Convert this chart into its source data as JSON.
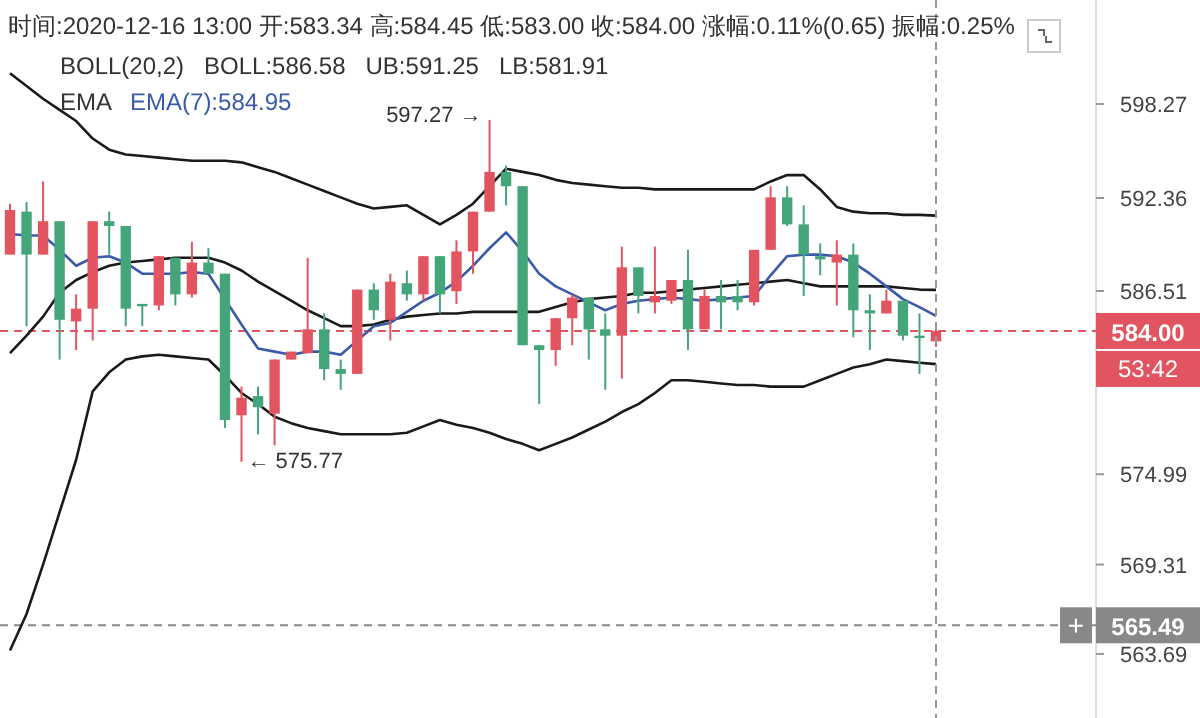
{
  "chart_data": {
    "type": "candlestick",
    "title": "时间:2020-12-16 13:00 开:583.34 高:584.45 低:583.00 收:584.00 涨幅:0.11%(0.65) 振幅:0.25%",
    "categories": [
      null,
      null,
      null,
      null,
      null,
      null,
      null,
      null,
      null,
      null,
      null,
      null,
      null,
      null,
      null,
      null,
      null,
      null,
      null,
      null,
      null,
      null,
      null,
      null,
      null,
      null,
      null,
      null,
      null,
      null,
      null,
      null,
      null,
      null,
      null,
      null,
      null,
      null,
      null,
      null,
      null,
      null,
      null,
      null,
      null,
      null,
      null,
      null,
      null,
      null,
      null,
      null,
      null,
      null,
      null,
      null,
      null
    ],
    "ohlc": [
      [
        588.8,
        592.0,
        588.8,
        591.6
      ],
      [
        591.5,
        592.1,
        584.3,
        588.8
      ],
      [
        588.8,
        593.4,
        588.8,
        590.9
      ],
      [
        590.9,
        590.9,
        582.2,
        584.7
      ],
      [
        584.6,
        586.3,
        582.8,
        585.4
      ],
      [
        585.4,
        590.9,
        583.4,
        590.9
      ],
      [
        590.9,
        591.5,
        588.8,
        590.6
      ],
      [
        590.6,
        590.6,
        584.3,
        585.4
      ],
      [
        585.7,
        585.7,
        584.3,
        585.6
      ],
      [
        585.6,
        588.7,
        585.3,
        588.7
      ],
      [
        588.6,
        588.6,
        585.6,
        586.3
      ],
      [
        586.3,
        589.6,
        586.1,
        588.3
      ],
      [
        588.3,
        589.2,
        587.6,
        587.6
      ],
      [
        587.6,
        587.6,
        577.9,
        578.4
      ],
      [
        578.7,
        580.5,
        575.77,
        579.8
      ],
      [
        579.9,
        580.5,
        577.5,
        579.2
      ],
      [
        578.8,
        582.2,
        576.8,
        582.2
      ],
      [
        582.2,
        582.7,
        582.2,
        582.7
      ],
      [
        582.6,
        588.6,
        582.6,
        584.1
      ],
      [
        584.1,
        585.1,
        580.9,
        581.6
      ],
      [
        581.6,
        582.2,
        580.3,
        581.3
      ],
      [
        581.3,
        586.6,
        581.3,
        586.6
      ],
      [
        586.6,
        587.0,
        584.7,
        585.3
      ],
      [
        584.7,
        587.6,
        583.4,
        587.1
      ],
      [
        587.0,
        587.8,
        585.9,
        586.3
      ],
      [
        586.3,
        588.7,
        585.9,
        588.7
      ],
      [
        588.7,
        588.7,
        585.1,
        586.3
      ],
      [
        586.5,
        589.7,
        585.7,
        589.0
      ],
      [
        589.0,
        591.5,
        587.6,
        591.5
      ],
      [
        591.5,
        597.27,
        591.5,
        594.0
      ],
      [
        594.0,
        594.4,
        591.9,
        593.1
      ],
      [
        593.1,
        593.1,
        583.1,
        583.1
      ],
      [
        583.1,
        583.1,
        579.4,
        582.8
      ],
      [
        582.8,
        584.8,
        581.8,
        584.8
      ],
      [
        584.8,
        586.3,
        583.1,
        586.1
      ],
      [
        586.1,
        586.1,
        582.2,
        584.1
      ],
      [
        584.1,
        585.1,
        580.3,
        583.7
      ],
      [
        583.7,
        589.3,
        581.0,
        588.0
      ],
      [
        588.0,
        588.0,
        585.1,
        586.2
      ],
      [
        585.8,
        589.3,
        585.1,
        586.2
      ],
      [
        585.9,
        587.2,
        585.7,
        587.2
      ],
      [
        587.2,
        589.1,
        582.8,
        584.1
      ],
      [
        584.1,
        586.6,
        584.1,
        586.2
      ],
      [
        586.2,
        587.2,
        584.1,
        585.8
      ],
      [
        586.2,
        587.2,
        585.3,
        585.8
      ],
      [
        585.8,
        589.1,
        585.6,
        589.1
      ],
      [
        589.1,
        593.1,
        589.1,
        592.4
      ],
      [
        592.4,
        593.1,
        590.6,
        590.7
      ],
      [
        590.7,
        591.9,
        586.2,
        588.8
      ],
      [
        588.7,
        589.5,
        587.5,
        588.5
      ],
      [
        588.3,
        589.7,
        585.6,
        588.8
      ],
      [
        588.8,
        589.5,
        583.6,
        585.3
      ],
      [
        585.3,
        586.3,
        582.8,
        585.1
      ],
      [
        585.1,
        586.6,
        585.1,
        585.9
      ],
      [
        585.9,
        585.9,
        583.4,
        583.7
      ],
      [
        583.7,
        585.1,
        581.3,
        583.6
      ],
      [
        583.34,
        584.45,
        583.0,
        584.0
      ]
    ],
    "colors": [
      "#e2545f",
      "#44a57a",
      "#e2545f",
      "#44a57a",
      "#e2545f",
      "#e2545f",
      "#44a57a",
      "#44a57a",
      "#44a57a",
      "#e2545f",
      "#44a57a",
      "#e2545f",
      "#44a57a",
      "#44a57a",
      "#e2545f",
      "#44a57a",
      "#e2545f",
      "#e2545f",
      "#e2545f",
      "#44a57a",
      "#44a57a",
      "#e2545f",
      "#44a57a",
      "#e2545f",
      "#44a57a",
      "#e2545f",
      "#44a57a",
      "#e2545f",
      "#e2545f",
      "#e2545f",
      "#44a57a",
      "#44a57a",
      "#44a57a",
      "#e2545f",
      "#e2545f",
      "#44a57a",
      "#44a57a",
      "#e2545f",
      "#44a57a",
      "#e2545f",
      "#e2545f",
      "#44a57a",
      "#e2545f",
      "#44a57a",
      "#44a57a",
      "#e2545f",
      "#e2545f",
      "#44a57a",
      "#44a57a",
      "#44a57a",
      "#e2545f",
      "#44a57a",
      "#44a57a",
      "#e2545f",
      "#44a57a",
      "#44a57a",
      "#e2545f"
    ],
    "series": [
      {
        "type": "line",
        "color": "#1a1a1a",
        "values": [
          582.6,
          583.7,
          584.9,
          586.4,
          587.2,
          587.7,
          588.1,
          588.3,
          588.4,
          588.5,
          588.6,
          588.6,
          588.6,
          588.3,
          587.8,
          587.1,
          586.5,
          585.9,
          585.3,
          584.8,
          584.3,
          584.3,
          584.4,
          584.7,
          584.9,
          585.0,
          585.1,
          585.1,
          585.2,
          585.2,
          585.2,
          585.2,
          585.2,
          585.5,
          585.8,
          586.0,
          586.1,
          586.2,
          586.4,
          586.4,
          586.5,
          586.6,
          586.7,
          586.8,
          586.9,
          587.0,
          587.1,
          587.2,
          587.0,
          586.8,
          586.8,
          586.8,
          586.8,
          586.8,
          586.7,
          586.6,
          586.58
        ]
      },
      {
        "type": "line",
        "color": "#1a1a1a",
        "values": [
          600.2,
          599.4,
          598.6,
          597.9,
          597.2,
          596.1,
          595.4,
          595.1,
          595.0,
          594.9,
          594.8,
          594.7,
          594.7,
          594.7,
          594.6,
          594.3,
          594.0,
          593.6,
          593.2,
          592.8,
          592.4,
          592.0,
          591.7,
          591.8,
          591.9,
          591.3,
          590.7,
          591.3,
          592.0,
          593.1,
          594.2,
          594.0,
          593.8,
          593.5,
          593.3,
          593.2,
          593.1,
          593.0,
          593.0,
          592.9,
          592.9,
          592.9,
          592.9,
          592.9,
          592.9,
          592.9,
          593.4,
          593.8,
          593.8,
          592.9,
          591.8,
          591.5,
          591.4,
          591.4,
          591.3,
          591.3,
          591.25
        ]
      },
      {
        "type": "line",
        "color": "#1a1a1a",
        "values": [
          563.9,
          566.2,
          569.3,
          572.6,
          575.9,
          580.2,
          581.4,
          582.2,
          582.4,
          582.5,
          582.4,
          582.3,
          582.2,
          581.2,
          580.1,
          579.4,
          578.6,
          578.2,
          577.9,
          577.7,
          577.5,
          577.5,
          577.5,
          577.5,
          577.6,
          578.0,
          578.4,
          578.1,
          577.9,
          577.6,
          577.2,
          576.9,
          576.5,
          576.9,
          577.3,
          577.8,
          578.3,
          578.9,
          579.4,
          580.1,
          580.9,
          580.9,
          580.8,
          580.7,
          580.6,
          580.6,
          580.5,
          580.5,
          580.5,
          580.9,
          581.3,
          581.7,
          581.9,
          582.2,
          582.1,
          582.0,
          581.91
        ]
      },
      {
        "type": "line",
        "name": "EMA(7):584.95",
        "color": "#3b5ba8",
        "values": [
          590.1,
          590.0,
          590.0,
          589.1,
          588.1,
          588.6,
          588.7,
          588.3,
          587.6,
          587.6,
          587.6,
          587.7,
          587.6,
          586.0,
          584.4,
          582.9,
          582.7,
          582.5,
          582.7,
          582.7,
          582.5,
          583.4,
          584.3,
          584.5,
          585.2,
          585.9,
          586.4,
          587.1,
          588.1,
          589.2,
          590.2,
          589.0,
          587.6,
          586.8,
          586.3,
          585.8,
          585.3,
          585.7,
          585.9,
          586.0,
          586.1,
          586.0,
          585.9,
          586.0,
          586.1,
          586.2,
          587.5,
          588.7,
          588.8,
          588.8,
          588.7,
          588.3,
          587.6,
          586.8,
          586.0,
          585.5,
          584.95
        ]
      }
    ],
    "subtitle": "BOLL(20,2)   BOLL:586.58   UB:591.25   LB:581.91",
    "annotations": [
      "EMA",
      "597.27 →",
      "← 575.77",
      "53:42",
      "+"
    ],
    "ref_lines": [
      {
        "axis": "y",
        "value": 584.0,
        "label": "584.00",
        "color": "#e2545f",
        "line_style": "dashed"
      },
      {
        "axis": "y",
        "value": 565.49,
        "label": "565.49",
        "color": "#888888",
        "line_style": "dashed"
      }
    ],
    "ylim": [
      559.66,
      604.81
    ],
    "yticks": [
      598.27,
      592.36,
      586.51,
      574.99,
      569.31,
      563.69
    ],
    "tick_labels": "y",
    "grid": false
  }
}
